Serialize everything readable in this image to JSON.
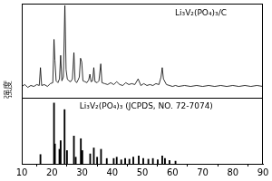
{
  "chart_data": {
    "type": "line",
    "ylabel": "强度",
    "xlim": [
      10,
      90
    ],
    "xticks": [
      10,
      20,
      30,
      40,
      50,
      60,
      70,
      80,
      90
    ],
    "ylim": [
      0,
      100
    ],
    "y2lim": [
      0,
      100
    ],
    "tick_labels": "x",
    "grid": false,
    "series": [
      {
        "name": "Li₃V₂(PO₄)₃/C",
        "type": "line",
        "color": "#000000",
        "x": [
          10,
          11,
          12,
          13,
          14,
          15,
          15.8,
          16.2,
          16.6,
          17.5,
          18.5,
          19.5,
          20.3,
          20.7,
          21.0,
          21.4,
          22.0,
          22.5,
          22.9,
          23.3,
          23.8,
          24.3,
          24.7,
          25.1,
          25.6,
          26.2,
          26.8,
          27.3,
          27.7,
          28.2,
          28.7,
          29.1,
          29.5,
          29.9,
          30.3,
          31.0,
          31.6,
          32.2,
          32.6,
          33.0,
          33.5,
          33.9,
          34.3,
          35.0,
          35.6,
          36.2,
          36.6,
          37.5,
          38.5,
          39.5,
          40.5,
          41.5,
          42.5,
          43.5,
          44.5,
          45.5,
          46.5,
          47.5,
          48.6,
          49.5,
          50.5,
          51.5,
          52.5,
          53.5,
          54.5,
          55.5,
          56.2,
          56.6,
          57.0,
          58,
          59,
          60,
          61,
          62,
          64,
          66,
          68,
          70,
          72,
          74,
          76,
          78,
          80,
          82,
          84,
          86,
          88,
          90
        ],
        "values": [
          12,
          14,
          11,
          13,
          12,
          14,
          13,
          32,
          13,
          14,
          12,
          15,
          16,
          62,
          40,
          18,
          16,
          20,
          45,
          18,
          22,
          98,
          30,
          20,
          18,
          17,
          20,
          48,
          18,
          16,
          19,
          22,
          42,
          38,
          18,
          17,
          16,
          19,
          25,
          17,
          18,
          32,
          17,
          16,
          18,
          36,
          16,
          15,
          14,
          16,
          14,
          17,
          14,
          13,
          16,
          14,
          15,
          14,
          20,
          13,
          15,
          13,
          14,
          13,
          15,
          14,
          22,
          32,
          20,
          14,
          13,
          12,
          13,
          12,
          13,
          12,
          13,
          12,
          13,
          12,
          13,
          12,
          13,
          12,
          13,
          12,
          13,
          12
        ]
      },
      {
        "name": "Li₃V₂(PO₄)₃ (JCPDS, NO. 72-7074)",
        "type": "bar",
        "color": "#000000",
        "axis": "y2",
        "x": [
          16.2,
          20.7,
          21.0,
          22.5,
          22.9,
          24.2,
          25.0,
          27.3,
          27.9,
          29.6,
          30.1,
          32.7,
          33.9,
          35.0,
          36.3,
          38.2,
          40.5,
          41.5,
          43.0,
          44.3,
          45.7,
          47.0,
          48.8,
          50.3,
          52.0,
          53.5,
          55.1,
          56.6,
          57.5,
          59.0,
          61.0
        ],
        "values": [
          14,
          92,
          30,
          22,
          35,
          82,
          20,
          42,
          10,
          38,
          20,
          15,
          24,
          10,
          22,
          8,
          8,
          10,
          6,
          8,
          7,
          10,
          12,
          8,
          7,
          8,
          6,
          12,
          8,
          5,
          4
        ]
      }
    ]
  }
}
